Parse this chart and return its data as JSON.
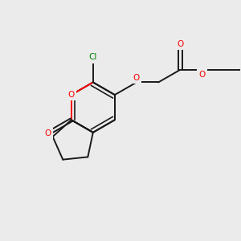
{
  "background_color": "#EBEBEB",
  "bond_color": "#1a1a1a",
  "cl_color": "#008000",
  "o_color": "#FF0000",
  "lw": 1.4,
  "figsize": [
    3.0,
    3.0
  ],
  "dpi": 100,
  "xlim": [
    0,
    10
  ],
  "ylim": [
    0,
    10
  ],
  "bl": 1.0
}
